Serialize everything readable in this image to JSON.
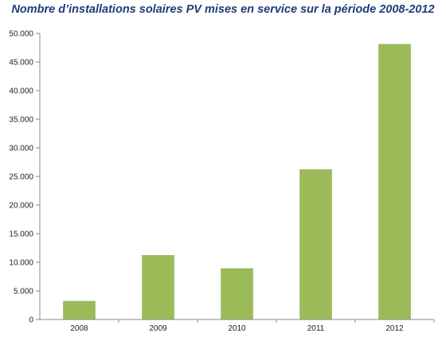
{
  "chart_data": {
    "type": "bar",
    "title": "Nombre d’installations solaires PV mises en service sur la période 2008-2012",
    "xlabel": "",
    "ylabel": "",
    "categories": [
      "2008",
      "2009",
      "2010",
      "2011",
      "2012"
    ],
    "values": [
      3200,
      11200,
      8900,
      26200,
      48100
    ],
    "ylim": [
      0,
      50000
    ],
    "y_ticks": [
      0,
      5000,
      10000,
      15000,
      20000,
      25000,
      30000,
      35000,
      40000,
      45000,
      50000
    ],
    "y_tick_labels": [
      "0",
      "5.000",
      "10.000",
      "15.000",
      "20.000",
      "25.000",
      "30.000",
      "35.000",
      "40.000",
      "45.000",
      "50.000"
    ],
    "grid": false,
    "legend": "none",
    "bar_color": "#9bbb59"
  }
}
